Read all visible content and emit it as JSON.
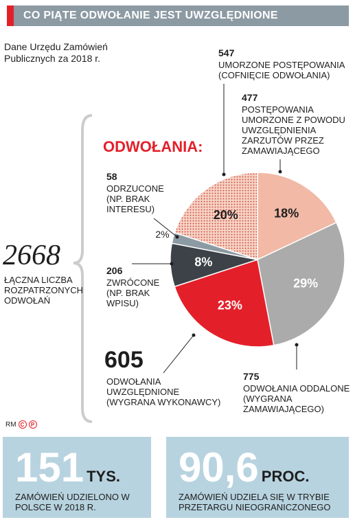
{
  "header": {
    "title": "CO PIĄTE ODWOŁANIE JEST UWZGLĘDNIONE"
  },
  "source": "Dane Urzędu Zamówień Publicznych za 2018 r.",
  "total": {
    "value": "2668",
    "caption": "ŁĄCZNA LICZBA ROZPATRZONYCH ODWOŁAŃ"
  },
  "credit": {
    "initials": "RM",
    "logo_letters": [
      "C",
      "P"
    ]
  },
  "stats": [
    {
      "value": "151",
      "unit": "TYS.",
      "caption": "ZAMÓWIEŃ UDZIELONO W POLSCE W 2018 R."
    },
    {
      "value": "90,6",
      "unit": "PROC.",
      "caption": "ZAMÓWIEŃ UDZIELA SIĘ W TRYBIE PRZETARGU NIEOGRANICZONEGO"
    }
  ],
  "chart_data": {
    "type": "pie",
    "title": "ODWOŁANIA:",
    "slices": [
      {
        "id": "cofniecie",
        "count": "547",
        "label": "UMORZONE POSTĘPOWANIA (COFNIĘCIE ODWOŁANIA)",
        "percent": 20,
        "pct_label": "20%",
        "color": "#f1b9a6",
        "pattern": "dots"
      },
      {
        "id": "uwzglednienie_zarzutow",
        "count": "477",
        "label": "POSTĘPOWANIA UMORZONE Z POWODU UWZGLĘDNIENIA ZARZUTÓW PRZEZ ZAMAWIAJĄCEGO",
        "percent": 18,
        "pct_label": "18%",
        "color": "#f1b9a6",
        "pattern": "none"
      },
      {
        "id": "oddalone",
        "count": "775",
        "label": "ODWOŁANIA ODDALONE (WYGRANA ZAMAWIAJĄCEGO)",
        "percent": 29,
        "pct_label": "29%",
        "color": "#ababab",
        "pattern": "none"
      },
      {
        "id": "uwzglednione",
        "count": "605",
        "label": "ODWOŁANIA UWZGLĘDNIONE (WYGRANA WYKONAWCY)",
        "percent": 23,
        "pct_label": "23%",
        "color": "#e3202a",
        "pattern": "none"
      },
      {
        "id": "zwrocone",
        "count": "206",
        "label": "ZWRÓCONE (NP. BRAK WPISU)",
        "percent": 8,
        "pct_label": "8%",
        "color": "#3c4247",
        "pattern": "none"
      },
      {
        "id": "odrzucone",
        "count": "58",
        "label": "ODRZUCONE (NP. BRAK INTERESU)",
        "percent": 2,
        "pct_label": "2%",
        "color": "#8c9aa3",
        "pattern": "none"
      }
    ]
  }
}
